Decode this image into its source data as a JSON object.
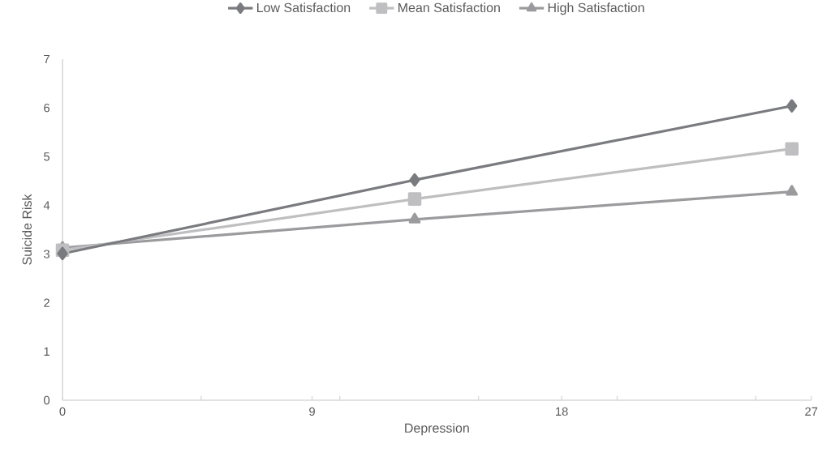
{
  "chart_data": {
    "type": "line",
    "xlabel": "Depression",
    "ylabel": "Suicide Risk",
    "x": [
      0,
      12.7,
      26.3
    ],
    "series": [
      {
        "name": "Low Satisfaction",
        "color": "#7a7b7f",
        "marker": "diamond",
        "values": [
          3.01,
          4.52,
          6.04
        ]
      },
      {
        "name": "Mean Satisfaction",
        "color": "#bfbfc1",
        "marker": "square",
        "values": [
          3.08,
          4.13,
          5.16
        ]
      },
      {
        "name": "High Satisfaction",
        "color": "#9b9b9e",
        "marker": "triangle",
        "values": [
          3.13,
          3.71,
          4.28
        ]
      }
    ],
    "xlim": [
      0,
      27
    ],
    "xticks": [
      0,
      {
        "value": 5,
        "label": null
      },
      9,
      {
        "value": 10,
        "label": null
      },
      {
        "value": 15,
        "label": null
      },
      18,
      {
        "value": 20,
        "label": null
      },
      {
        "value": 25,
        "label": null
      },
      27
    ],
    "ylim": [
      0,
      7
    ],
    "yticks": [
      0,
      1,
      2,
      3,
      4,
      5,
      6,
      7
    ],
    "grid": false,
    "legend": "top",
    "line_style": "solid"
  }
}
